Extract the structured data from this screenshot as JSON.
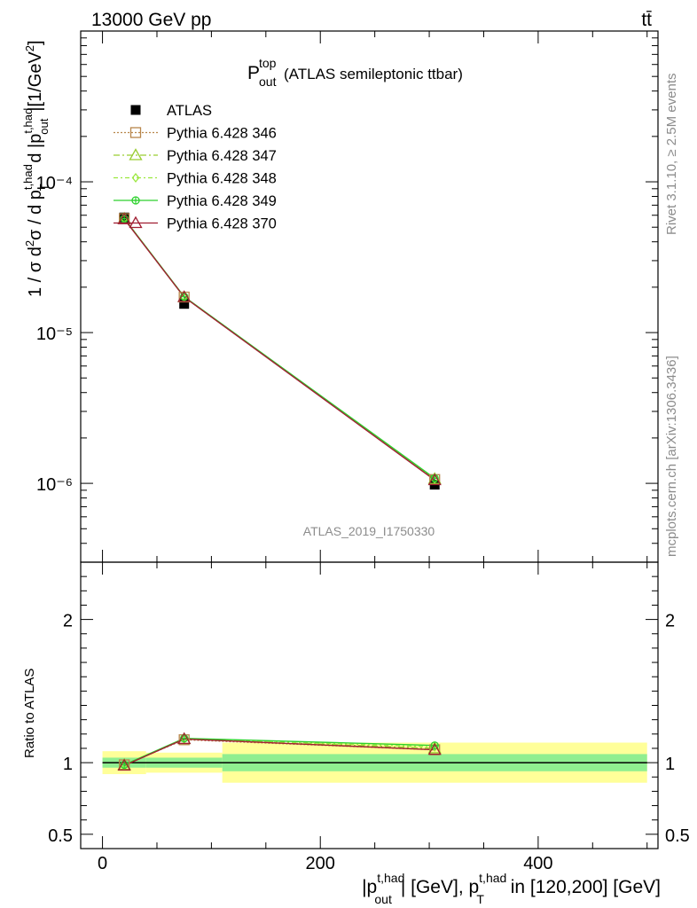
{
  "header": {
    "energy_label": "13000 GeV pp",
    "process_label": "tt̄"
  },
  "plot_title": {
    "symbol": "P",
    "superscript": "top",
    "subscript": "out",
    "text": "(ATLAS semileptonic ttbar)"
  },
  "watermark": "ATLAS_2019_I1750330",
  "side_labels": {
    "rivet": "Rivet 3.1.10, ≥ 2.5M events",
    "mcplots": "mcplots.cern.ch [arXiv:1306.3436]"
  },
  "axes": {
    "ylabel_main": "1 / σ d²σ / d p_T^{t,had} d |p_out^{t,had}| [1/GeV²]",
    "ylabel_ratio": "Ratio to ATLAS",
    "xlabel": "|p_out^{t,had}| [GeV], p_T^{t,had} in [120,200] [GeV]",
    "x_ticks": [
      "0",
      "200",
      "400"
    ],
    "y_ticks_main": [
      "10⁻⁶",
      "10⁻⁵",
      "10⁻⁴"
    ],
    "y_ticks_ratio": [
      "0.5",
      "1",
      "2"
    ]
  },
  "legend": [
    {
      "label": "ATLAS",
      "color": "#000000",
      "marker": "square-filled"
    },
    {
      "label": "Pythia 6.428 346",
      "color": "#b8864b",
      "marker": "square-open"
    },
    {
      "label": "Pythia 6.428 347",
      "color": "#9acd32",
      "marker": "triangle-open"
    },
    {
      "label": "Pythia 6.428 348",
      "color": "#9be83e",
      "marker": "diamond-open"
    },
    {
      "label": "Pythia 6.428 349",
      "color": "#2dd12d",
      "marker": "circle-cross"
    },
    {
      "label": "Pythia 6.428 370",
      "color": "#a01e32",
      "marker": "triangle-open"
    }
  ],
  "chart_data": {
    "type": "line",
    "x_scale": "linear",
    "y_scale": "log",
    "xlim": [
      -20,
      510
    ],
    "ylim": [
      3e-07,
      0.001
    ],
    "ratio_ylim": [
      0.4,
      2.4
    ],
    "x": [
      20,
      75,
      305
    ],
    "x_bin_edges": [
      0,
      40,
      110,
      500
    ],
    "data": {
      "name": "ATLAS",
      "values": [
        5.8e-05,
        1.55e-05,
        9.8e-07
      ],
      "ratio_band_stat": [
        0.035,
        0.035,
        0.06
      ],
      "ratio_band_total": [
        0.08,
        0.07,
        0.14
      ]
    },
    "series": [
      {
        "name": "Pythia 6.428 346",
        "values": [
          5.7e-05,
          1.72e-05,
          1.06e-06
        ],
        "ratio": [
          0.985,
          1.16,
          1.09
        ]
      },
      {
        "name": "Pythia 6.428 347",
        "values": [
          5.7e-05,
          1.72e-05,
          1.07e-06
        ],
        "ratio": [
          0.985,
          1.165,
          1.1
        ]
      },
      {
        "name": "Pythia 6.428 348",
        "values": [
          5.7e-05,
          1.72e-05,
          1.07e-06
        ],
        "ratio": [
          0.985,
          1.165,
          1.11
        ]
      },
      {
        "name": "Pythia 6.428 349",
        "values": [
          5.7e-05,
          1.73e-05,
          1.08e-06
        ],
        "ratio": [
          0.985,
          1.17,
          1.12
        ]
      },
      {
        "name": "Pythia 6.428 370",
        "values": [
          5.65e-05,
          1.72e-05,
          1.05e-06
        ],
        "ratio": [
          0.98,
          1.165,
          1.09
        ]
      }
    ]
  }
}
